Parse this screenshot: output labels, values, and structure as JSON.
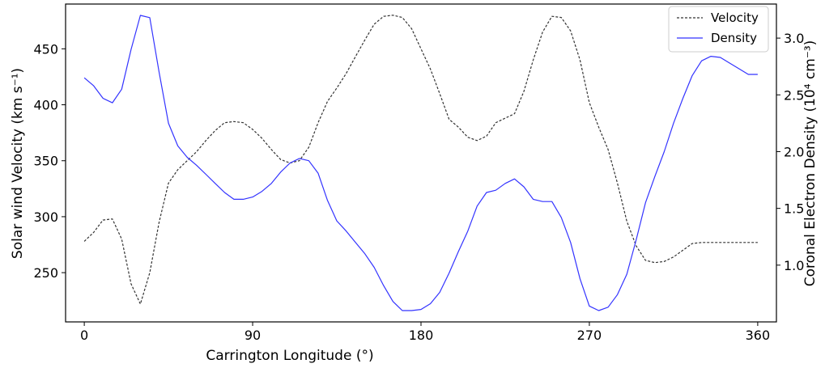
{
  "chart_data": {
    "type": "line",
    "title": "",
    "xlabel": "Carrington Longitude (°)",
    "ylabel_left": "Solar wind Velocity (km s⁻¹)",
    "ylabel_right": "Coronal Electron Density (10⁴ cm⁻³)",
    "xlim": [
      -10,
      370
    ],
    "ylim_left": [
      206,
      490
    ],
    "ylim_right": [
      0.5,
      3.3
    ],
    "xticks": [
      "0",
      "90",
      "180",
      "270",
      "360"
    ],
    "yticks_left": [
      "250",
      "300",
      "350",
      "400",
      "450"
    ],
    "yticks_right": [
      "1.0",
      "1.5",
      "2.0",
      "2.5",
      "3.0"
    ],
    "legend_position": "upper right",
    "grid": false,
    "x": [
      0,
      5,
      10,
      15,
      20,
      25,
      30,
      35,
      40,
      45,
      50,
      55,
      60,
      65,
      70,
      75,
      80,
      85,
      90,
      95,
      100,
      105,
      110,
      115,
      120,
      125,
      130,
      135,
      140,
      145,
      150,
      155,
      160,
      165,
      170,
      175,
      180,
      185,
      190,
      195,
      200,
      205,
      210,
      215,
      220,
      225,
      230,
      235,
      240,
      245,
      250,
      255,
      260,
      265,
      270,
      275,
      280,
      285,
      290,
      295,
      300,
      305,
      310,
      315,
      320,
      325,
      330,
      335,
      340,
      345,
      350,
      355,
      360
    ],
    "series": [
      {
        "name": "Velocity",
        "axis": "left",
        "color": "#333333",
        "style": "dashed",
        "values": [
          278,
          286,
          297,
          298,
          280,
          240,
          222,
          250,
          295,
          330,
          342,
          350,
          358,
          368,
          377,
          384,
          385,
          384,
          378,
          370,
          360,
          351,
          348,
          350,
          362,
          384,
          403,
          415,
          428,
          443,
          458,
          472,
          479,
          480,
          478,
          468,
          450,
          432,
          410,
          387,
          380,
          371,
          368,
          372,
          384,
          388,
          392,
          412,
          440,
          465,
          479,
          478,
          466,
          440,
          402,
          380,
          360,
          330,
          296,
          274,
          261,
          259,
          260,
          264,
          270,
          276,
          277,
          277,
          277,
          277,
          277,
          277,
          277
        ]
      },
      {
        "name": "Density",
        "axis": "right",
        "color": "#3333ff",
        "style": "solid",
        "values": [
          2.65,
          2.58,
          2.47,
          2.43,
          2.55,
          2.9,
          3.2,
          3.18,
          2.7,
          2.25,
          2.05,
          1.95,
          1.88,
          1.8,
          1.72,
          1.64,
          1.58,
          1.58,
          1.6,
          1.65,
          1.72,
          1.82,
          1.9,
          1.94,
          1.92,
          1.81,
          1.57,
          1.39,
          1.3,
          1.2,
          1.1,
          0.98,
          0.82,
          0.68,
          0.6,
          0.6,
          0.61,
          0.66,
          0.76,
          0.93,
          1.12,
          1.3,
          1.52,
          1.64,
          1.66,
          1.72,
          1.76,
          1.69,
          1.58,
          1.56,
          1.56,
          1.42,
          1.2,
          0.88,
          0.64,
          0.6,
          0.63,
          0.74,
          0.92,
          1.22,
          1.55,
          1.78,
          2.0,
          2.25,
          2.47,
          2.67,
          2.8,
          2.84,
          2.83,
          2.78,
          2.73,
          2.68,
          2.68
        ]
      }
    ]
  }
}
